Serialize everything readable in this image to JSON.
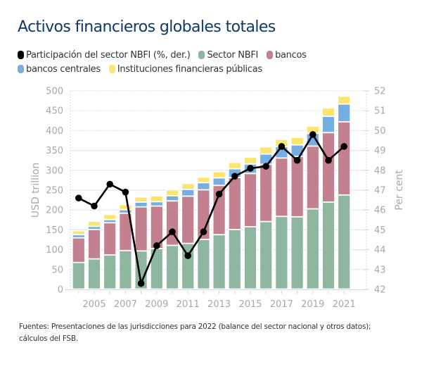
{
  "colors": {
    "title": "#0f3a66",
    "nbfi_share": "#000000",
    "nbfi": "#8fb69e",
    "banks": "#c3808f",
    "central_banks": "#74aee2",
    "public_fi": "#fde46c",
    "grid": "#e6e6e6",
    "tick": "#a8a8a8"
  },
  "footer": {
    "line1": "Fuentes: Presentaciones de las jurisdicciones para 2022 (balance del sector nacional y otros datos);",
    "line2": "cálculos del FSB."
  },
  "chart_data": {
    "type": "bar",
    "stacked": true,
    "title": "Activos financieros globales totales",
    "xlabel": "",
    "ylabel": "USD trillion",
    "y2label": "Per cent",
    "ylim": [
      0,
      500
    ],
    "y2lim": [
      42,
      52
    ],
    "yticks": [
      0,
      50,
      100,
      150,
      200,
      250,
      300,
      350,
      400,
      450,
      500
    ],
    "y2ticks": [
      42,
      43,
      44,
      45,
      46,
      47,
      48,
      49,
      50,
      51,
      52
    ],
    "grid": true,
    "legend_position": "top-left",
    "categories": [
      "2004",
      "2005",
      "2006",
      "2007",
      "2008",
      "2009",
      "2010",
      "2011",
      "2012",
      "2013",
      "2014",
      "2015",
      "2016",
      "2017",
      "2018",
      "2019",
      "2020",
      "2021"
    ],
    "xtick_labels": [
      "2005",
      "2007",
      "2009",
      "2011",
      "2013",
      "2015",
      "2017",
      "2019",
      "2021"
    ],
    "legend": [
      {
        "key": "nbfi_share",
        "label": "Participación del sector NBFI (%, der.)"
      },
      {
        "key": "nbfi",
        "label": "Sector NBFI"
      },
      {
        "key": "banks",
        "label": "bancos"
      },
      {
        "key": "central_banks",
        "label": "bancos centrales"
      },
      {
        "key": "public_fi",
        "label": "Instituciones financieras públicas"
      }
    ],
    "series": [
      {
        "key": "nbfi",
        "name": "Sector NBFI",
        "type": "bar",
        "axis": "left",
        "values": [
          67,
          76,
          86,
          97,
          96,
          102,
          110,
          115,
          125,
          137,
          150,
          157,
          170,
          183,
          182,
          202,
          219,
          237
        ]
      },
      {
        "key": "banks",
        "name": "bancos",
        "type": "bar",
        "axis": "left",
        "values": [
          62,
          74,
          81,
          94,
          111,
          107,
          112,
          119,
          125,
          124,
          131,
          134,
          144,
          147,
          152,
          158,
          175,
          184
        ]
      },
      {
        "key": "central_banks",
        "name": "bancos centrales",
        "type": "bar",
        "axis": "left",
        "values": [
          8,
          8,
          8,
          9,
          12,
          11,
          13,
          17,
          18,
          19,
          22,
          24,
          26,
          29,
          29,
          32,
          41,
          45
        ]
      },
      {
        "key": "public_fi",
        "name": "Instituciones financieras públicas",
        "type": "bar",
        "axis": "left",
        "values": [
          10,
          13,
          13,
          13,
          13,
          15,
          15,
          15,
          14,
          16,
          16,
          17,
          18,
          18,
          19,
          18,
          21,
          20
        ]
      },
      {
        "key": "nbfi_share",
        "name": "Participación del sector NBFI (%, der.)",
        "type": "line",
        "axis": "right",
        "values": [
          46.6,
          46.2,
          47.3,
          46.9,
          42.3,
          44.2,
          44.9,
          43.7,
          44.9,
          46.8,
          47.7,
          48.1,
          48.2,
          49.2,
          48.5,
          49.8,
          48.5,
          49.2
        ]
      }
    ]
  }
}
